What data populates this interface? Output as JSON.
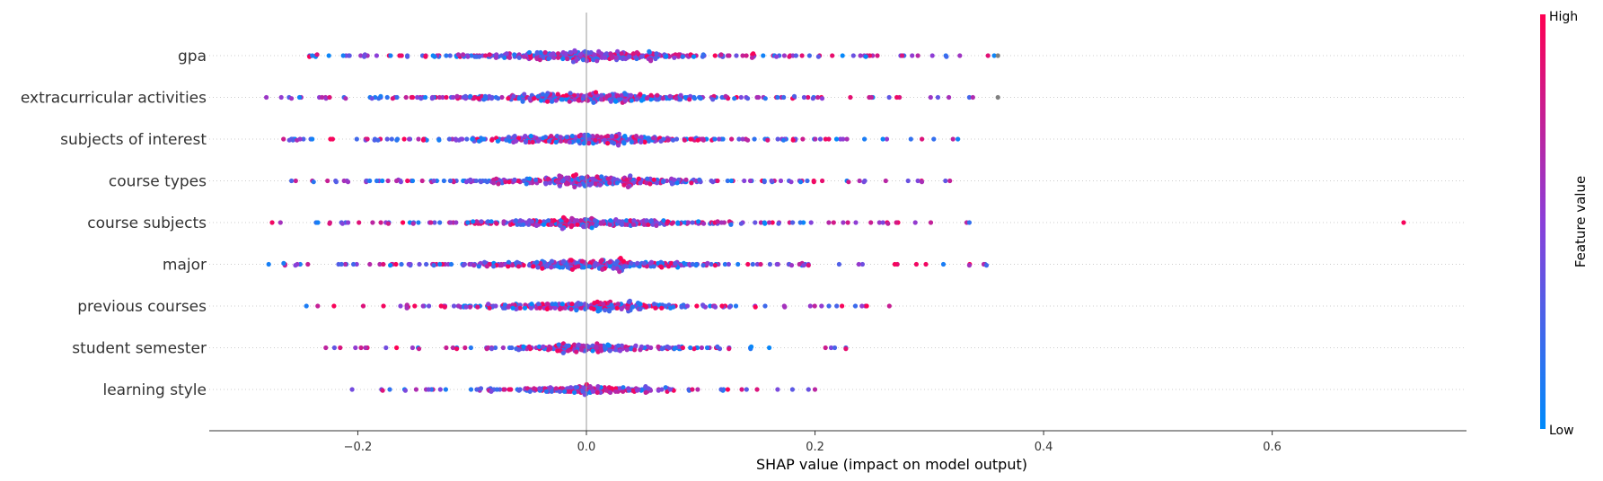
{
  "chart_data": {
    "type": "scatter",
    "style": "shap-beeswarm",
    "xlabel": "SHAP value (impact on model output)",
    "xlim": [
      -0.33,
      0.77
    ],
    "xticks": [
      -0.2,
      0.0,
      0.2,
      0.4,
      0.6
    ],
    "xtick_labels": [
      "−0.2",
      "0.0",
      "0.2",
      "0.4",
      "0.6"
    ],
    "grid": false,
    "zero_line": 0.0,
    "colorbar": {
      "title": "Feature value",
      "high_label": "High",
      "low_label": "Low",
      "high_color": "#ff0052",
      "mid_color": "#8b3fd9",
      "low_color": "#008bfb"
    },
    "features": [
      {
        "name": "gpa",
        "min": -0.25,
        "max": 0.36,
        "spread": 0.085,
        "density": 1.0,
        "outliers": [
          0.36,
          0.315,
          0.29,
          0.285
        ]
      },
      {
        "name": "extracurricular activities",
        "min": -0.28,
        "max": 0.36,
        "spread": 0.085,
        "density": 1.0,
        "outliers": [
          0.36,
          -0.28,
          -0.258
        ]
      },
      {
        "name": "subjects of interest",
        "min": -0.265,
        "max": 0.325,
        "spread": 0.08,
        "density": 0.95,
        "outliers": [
          0.325,
          -0.265
        ]
      },
      {
        "name": "course types",
        "min": -0.258,
        "max": 0.318,
        "spread": 0.08,
        "density": 0.95,
        "outliers": [
          -0.258,
          0.318
        ]
      },
      {
        "name": "course subjects",
        "min": -0.275,
        "max": 0.335,
        "spread": 0.08,
        "density": 0.9,
        "outliers": [
          0.715,
          0.335,
          -0.275
        ]
      },
      {
        "name": "major",
        "min": -0.278,
        "max": 0.35,
        "spread": 0.08,
        "density": 0.95,
        "outliers": [
          0.35,
          0.335,
          -0.278
        ]
      },
      {
        "name": "previous courses",
        "min": -0.245,
        "max": 0.265,
        "spread": 0.075,
        "density": 0.8,
        "outliers": [
          -0.245,
          0.265
        ]
      },
      {
        "name": "student semester",
        "min": -0.228,
        "max": 0.227,
        "spread": 0.065,
        "density": 0.6,
        "outliers": [
          -0.228,
          0.227
        ]
      },
      {
        "name": "learning style",
        "min": -0.205,
        "max": 0.2,
        "spread": 0.05,
        "density": 0.55,
        "outliers": [
          -0.205,
          0.2
        ]
      }
    ]
  }
}
